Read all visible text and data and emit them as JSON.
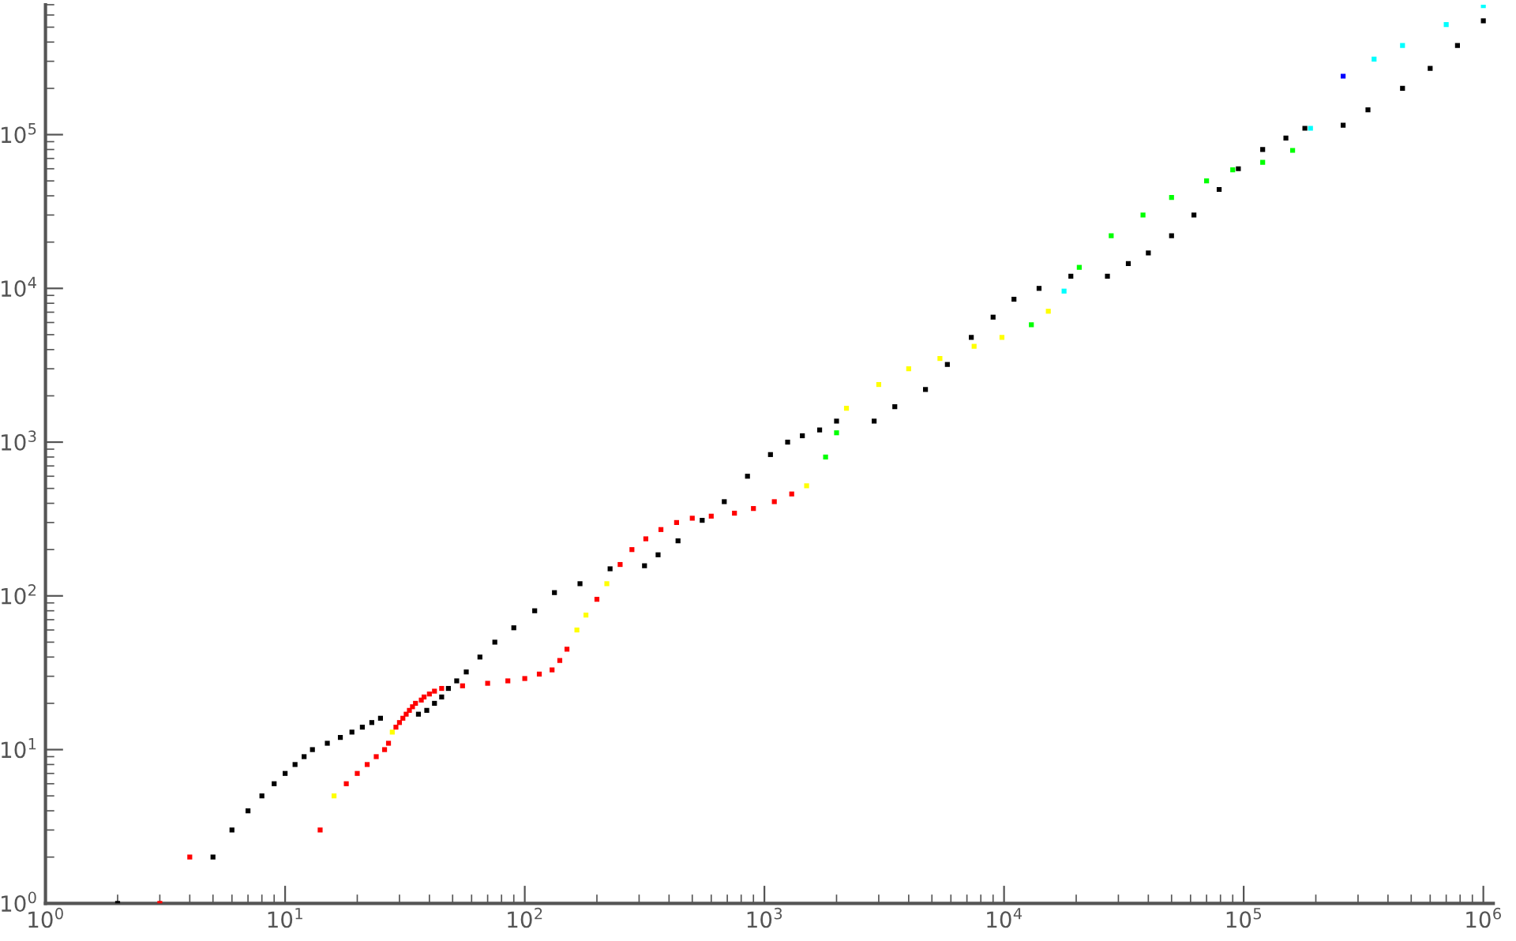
{
  "chart_data": {
    "type": "scatter",
    "log": "xy",
    "grid": false,
    "legend": false,
    "marker": "square",
    "xlim": [
      1,
      1100000
    ],
    "ylim": [
      1,
      700000
    ],
    "xticks": [
      {
        "value": 1,
        "label": "10$^{0}$"
      },
      {
        "value": 10,
        "label": "10$^{1}$"
      },
      {
        "value": 100,
        "label": "10$^{2}$"
      },
      {
        "value": 1000,
        "label": "10$^{3}$"
      },
      {
        "value": 10000,
        "label": "10$^{4}$"
      },
      {
        "value": 100000,
        "label": "10$^{5}$"
      },
      {
        "value": 1000000,
        "label": "10$^{6}$"
      }
    ],
    "yticks": [
      {
        "value": 1,
        "label": "10$^{0}$"
      },
      {
        "value": 10,
        "label": "10$^{1}$"
      },
      {
        "value": 100,
        "label": "10$^{2}$"
      },
      {
        "value": 1000,
        "label": "10$^{3}$"
      },
      {
        "value": 10000,
        "label": "10$^{4}$"
      },
      {
        "value": 100000,
        "label": "10$^{5}$"
      }
    ],
    "series": [
      {
        "color": "#000000",
        "x": [
          2,
          5,
          6,
          7,
          8,
          9,
          10,
          11,
          12,
          13,
          15,
          17,
          19,
          21,
          23,
          25,
          36,
          39,
          42,
          45,
          48,
          52,
          57,
          65,
          75,
          90,
          110,
          133,
          170,
          227,
          316,
          360,
          436,
          550,
          680,
          850,
          1060,
          1250,
          1440,
          1700,
          2000,
          2870,
          3500,
          4700,
          5800,
          7300,
          9000,
          11000,
          14000,
          19000,
          27000,
          33000,
          40000,
          50000,
          62000,
          79000,
          95000,
          120000,
          150000,
          180000,
          260000,
          330000,
          460000,
          600000,
          780000,
          1000000
        ],
        "values": [
          1,
          2,
          3,
          4,
          5,
          6,
          7,
          8,
          9,
          10,
          11,
          12,
          13,
          14,
          15,
          16,
          17,
          18,
          20,
          22,
          25,
          28,
          32,
          40,
          50,
          62,
          80,
          105,
          120,
          150,
          157,
          185,
          228,
          310,
          410,
          600,
          830,
          1000,
          1100,
          1200,
          1370,
          1370,
          1700,
          2200,
          3200,
          4800,
          6500,
          8500,
          10000,
          12000,
          12000,
          14500,
          17000,
          22000,
          30000,
          44000,
          60000,
          80000,
          95000,
          110000,
          115000,
          145000,
          200000,
          270000,
          380000,
          550000
        ]
      },
      {
        "x": [
          3,
          4,
          14,
          16,
          18,
          20,
          22,
          24,
          26,
          27,
          28,
          29,
          30,
          31,
          32,
          33,
          34,
          35,
          37,
          38,
          40,
          42,
          45,
          55,
          70,
          85,
          100,
          115,
          130,
          140,
          150,
          165,
          180,
          200,
          220,
          250,
          280,
          320,
          370,
          430,
          500,
          600,
          750,
          900,
          1100,
          1300,
          1500,
          1800,
          2000,
          2200,
          3000,
          4000,
          5400,
          7500,
          9800,
          13000,
          15300,
          17800,
          20600,
          28000,
          38000,
          50000,
          70000,
          90000,
          120000,
          160000,
          190000,
          260000,
          350000,
          460000,
          700000,
          1000000
        ],
        "values": [
          1,
          2,
          3,
          5,
          6,
          7,
          8,
          9,
          10,
          11,
          13,
          14,
          15,
          16,
          17,
          18,
          19,
          20,
          21,
          22,
          23,
          24,
          25,
          26,
          27,
          28,
          29,
          31,
          33,
          38,
          45,
          60,
          75,
          95,
          120,
          160,
          200,
          235,
          270,
          300,
          320,
          330,
          345,
          370,
          410,
          460,
          520,
          800,
          1150,
          1660,
          2370,
          3000,
          3500,
          4200,
          4800,
          5800,
          7100,
          9600,
          13700,
          22000,
          30000,
          39000,
          50000,
          59000,
          66000,
          79000,
          110000,
          240000,
          310000,
          380000,
          520000,
          690000
        ],
        "colors": [
          "#ff0000",
          "#ff0000",
          "#ff0000",
          "#ffff00",
          "#ff0000",
          "#ff0000",
          "#ff0000",
          "#ff0000",
          "#ff0000",
          "#ff0000",
          "#ffff00",
          "#ff0000",
          "#ff0000",
          "#ff0000",
          "#ff0000",
          "#ff0000",
          "#ff0000",
          "#ff0000",
          "#ff0000",
          "#ff0000",
          "#ff0000",
          "#ff0000",
          "#ff0000",
          "#ff0000",
          "#ff0000",
          "#ff0000",
          "#ff0000",
          "#ff0000",
          "#ff0000",
          "#ff0000",
          "#ff0000",
          "#ffff00",
          "#ffff00",
          "#ff0000",
          "#ffff00",
          "#ff0000",
          "#ff0000",
          "#ff0000",
          "#ff0000",
          "#ff0000",
          "#ff0000",
          "#ff0000",
          "#ff0000",
          "#ff0000",
          "#ff0000",
          "#ff0000",
          "#ffff00",
          "#00ff00",
          "#00ff00",
          "#ffff00",
          "#ffff00",
          "#ffff00",
          "#ffff00",
          "#ffff00",
          "#ffff00",
          "#00ff00",
          "#ffff00",
          "#00ffff",
          "#00ff00",
          "#00ff00",
          "#00ff00",
          "#00ff00",
          "#00ff00",
          "#00ff00",
          "#00ff00",
          "#00ff00",
          "#00ffff",
          "#0000ff",
          "#00ffff",
          "#00ffff",
          "#00ffff",
          "#00ffff"
        ]
      }
    ]
  }
}
